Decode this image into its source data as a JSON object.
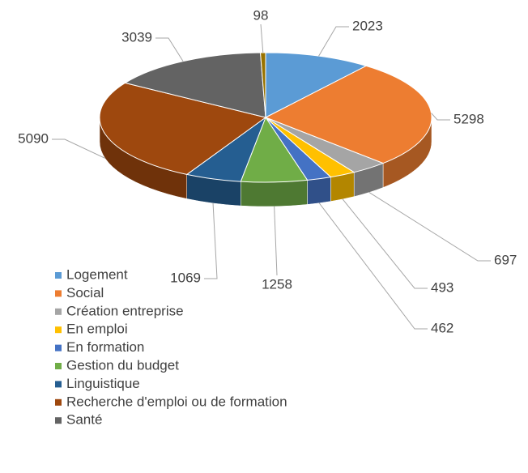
{
  "chart_data": {
    "type": "pie3d",
    "categories": [
      "Logement",
      "Social",
      "Création entreprise",
      "En emploi",
      "En formation",
      "Gestion du budget",
      "Linguistique",
      "Recherche d'emploi ou de formation",
      "Santé",
      null
    ],
    "values": [
      2023,
      5298,
      697,
      493,
      462,
      1258,
      1069,
      5090,
      3039,
      98
    ],
    "colors": [
      "#5b9bd5",
      "#ed7d31",
      "#a5a5a5",
      "#ffc000",
      "#4472c4",
      "#70ad47",
      "#255e91",
      "#9e480e",
      "#636363",
      "#997300"
    ],
    "legend": "bottom-left"
  }
}
